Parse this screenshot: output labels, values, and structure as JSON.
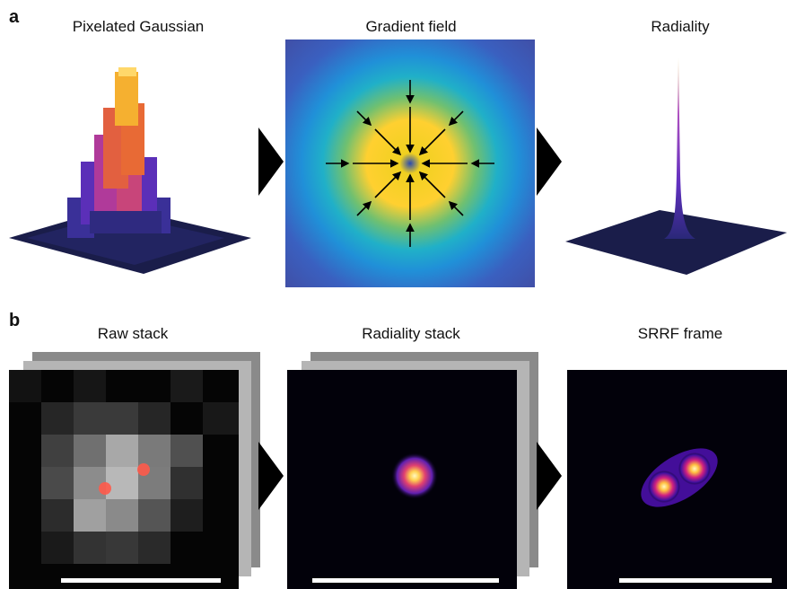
{
  "panel_a": {
    "label": "a",
    "titles": [
      "Pixelated Gaussian",
      "Gradient field",
      "Radiality"
    ]
  },
  "panel_b": {
    "label": "b",
    "titles": [
      "Raw stack",
      "Radiality stack",
      "SRRF frame"
    ]
  },
  "colors": {
    "arrow": "#000000",
    "scalebar": "#ffffff",
    "spot": "#ff5a4a"
  },
  "icons": [
    "right-triangle-arrow"
  ]
}
